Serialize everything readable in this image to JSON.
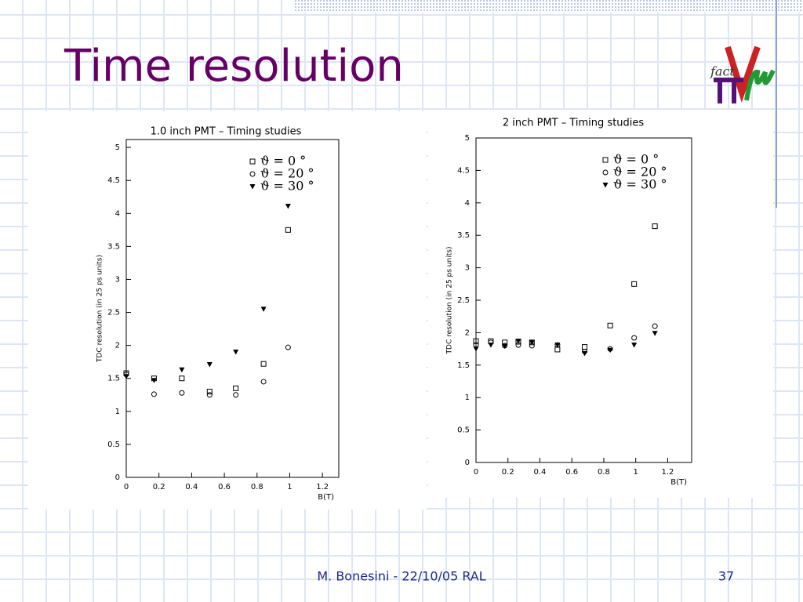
{
  "slide": {
    "title": "Time resolution",
    "logo": "fact",
    "footer": "M. Bonesini - 22/10/05 RAL",
    "page": "37"
  },
  "chart_data": [
    {
      "type": "scatter",
      "title": "1.0 inch PMT – Timing studies",
      "x_label": "B(T)",
      "y_label": "TDC resolution (in 25 ps units)",
      "x": [
        0,
        0.17,
        0.34,
        0.51,
        0.67,
        0.84,
        0.99
      ],
      "series": [
        {
          "name": "ϑ = 0 °",
          "marker": "square",
          "color": "#000000",
          "values": [
            1.58,
            1.5,
            1.5,
            1.3,
            1.35,
            1.72,
            3.75
          ]
        },
        {
          "name": "ϑ = 20 °",
          "marker": "circle",
          "color": "#000000",
          "values": [
            1.56,
            1.26,
            1.28,
            1.25,
            1.25,
            1.45,
            1.97
          ]
        },
        {
          "name": "ϑ = 30 °",
          "marker": "triangle",
          "color": "#000000",
          "values": [
            1.53,
            1.47,
            1.63,
            1.71,
            1.9,
            2.55,
            4.11
          ]
        }
      ],
      "xlim": [
        0,
        1.3
      ],
      "xticks": [
        0,
        0.2,
        0.4,
        0.6,
        0.8,
        1,
        1.2
      ],
      "ylim": [
        0,
        5.12
      ],
      "yticks": [
        0,
        0.5,
        1,
        1.5,
        2,
        2.5,
        3,
        3.5,
        4,
        4.5,
        5
      ],
      "legend": "upper right"
    },
    {
      "type": "scatter",
      "title": "2 inch PMT – Timing studies",
      "x_label": "B(T)",
      "y_label": "TDC resolution (in 25 ps units)",
      "x": [
        0,
        0.093,
        0.18,
        0.265,
        0.35,
        0.51,
        0.68,
        0.84,
        0.99,
        1.12
      ],
      "series": [
        {
          "name": "ϑ = 0 °",
          "marker": "square",
          "color": "#000000",
          "values": [
            1.87,
            1.87,
            1.85,
            1.86,
            1.85,
            1.74,
            1.78,
            2.11,
            2.75,
            3.64
          ]
        },
        {
          "name": "ϑ = 20 °",
          "marker": "circle",
          "color": "#000000",
          "values": [
            1.81,
            1.85,
            1.8,
            1.81,
            1.8,
            1.81,
            1.71,
            1.75,
            1.92,
            2.1
          ]
        },
        {
          "name": "ϑ = 30 °",
          "marker": "triangle",
          "color": "#000000",
          "values": [
            1.75,
            1.81,
            1.79,
            1.87,
            1.85,
            1.81,
            1.68,
            1.73,
            1.81,
            1.99
          ]
        }
      ],
      "xlim": [
        0,
        1.35
      ],
      "xticks": [
        0,
        0.2,
        0.4,
        0.6,
        0.8,
        1,
        1.2
      ],
      "ylim": [
        0,
        5
      ],
      "yticks": [
        0,
        0.5,
        1,
        1.5,
        2,
        2.5,
        3,
        3.5,
        4,
        4.5,
        5
      ],
      "legend": "upper right"
    }
  ]
}
